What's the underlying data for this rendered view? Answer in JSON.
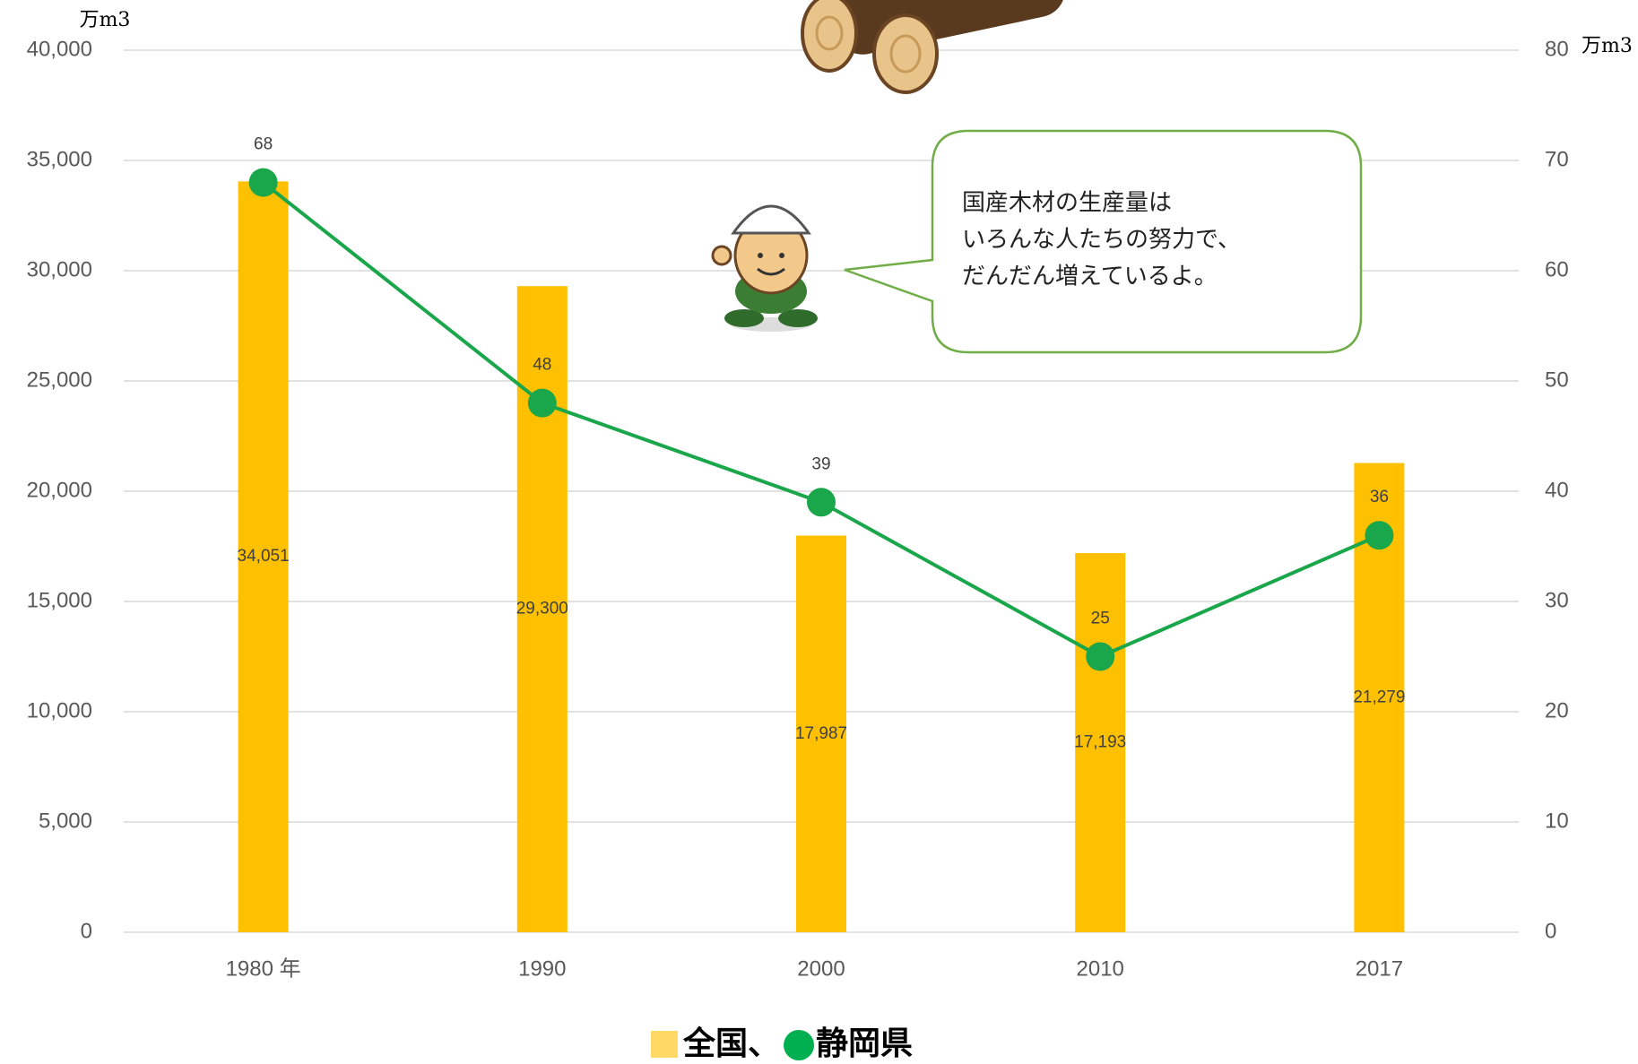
{
  "chart_data": {
    "type": "bar_line",
    "y_unit": "万m3",
    "y2_unit": "万m3",
    "categories": [
      "1980 年",
      "1990",
      "2000",
      "2010",
      "2017"
    ],
    "series": [
      {
        "name": "全国",
        "type": "bar",
        "color": "#ffc000",
        "legend_color": "#ffd966",
        "values": [
          34051,
          29300,
          17987,
          17193,
          21279
        ],
        "value_labels": [
          "34,051",
          "29,300",
          "17,987",
          "17,193",
          "21,279"
        ]
      },
      {
        "name": "静岡県",
        "type": "line",
        "axis": "y2",
        "color": "#1aa64a",
        "legend_color": "#00b050",
        "values": [
          68,
          48,
          39,
          25,
          36
        ]
      }
    ],
    "legend_separator": "、",
    "ylim": [
      0,
      40000
    ],
    "yticks": [
      0,
      {
        "value": 5000,
        "label": "5,000"
      },
      {
        "value": 10000,
        "label": "10,000"
      },
      {
        "value": 15000,
        "label": "15,000"
      },
      {
        "value": 20000,
        "label": "20,000"
      },
      {
        "value": 25000,
        "label": "25,000"
      },
      {
        "value": 30000,
        "label": "30,000"
      },
      {
        "value": 35000,
        "label": "35,000"
      },
      {
        "value": 40000,
        "label": "40,000"
      }
    ],
    "y2lim": [
      0,
      80
    ],
    "y2ticks": [
      0,
      10,
      20,
      30,
      40,
      50,
      60,
      70,
      80
    ],
    "grid": true,
    "annotation": [
      "国産木材の生産量は",
      "いろんな人たちの努力で、",
      "だんだん増えているよ。"
    ]
  }
}
